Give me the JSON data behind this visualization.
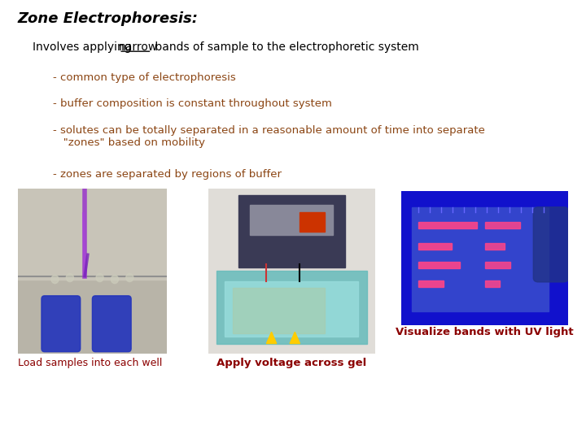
{
  "title": "Zone Electrophoresis:",
  "title_color": "#000000",
  "subtitle_color": "#000000",
  "bullet_color": "#8B4513",
  "bullets": [
    "- common type of electrophoresis",
    "- buffer composition is constant throughout system",
    "- solutes can be totally separated in a reasonable amount of time into separate\n   \"zones\" based on mobility",
    "- zones are separated by regions of buffer"
  ],
  "caption1": "Load samples into each well",
  "caption2": "Apply voltage across gel",
  "caption3": "Visualize bands with UV light",
  "caption_color": "#8B0000",
  "background_color": "#ffffff"
}
